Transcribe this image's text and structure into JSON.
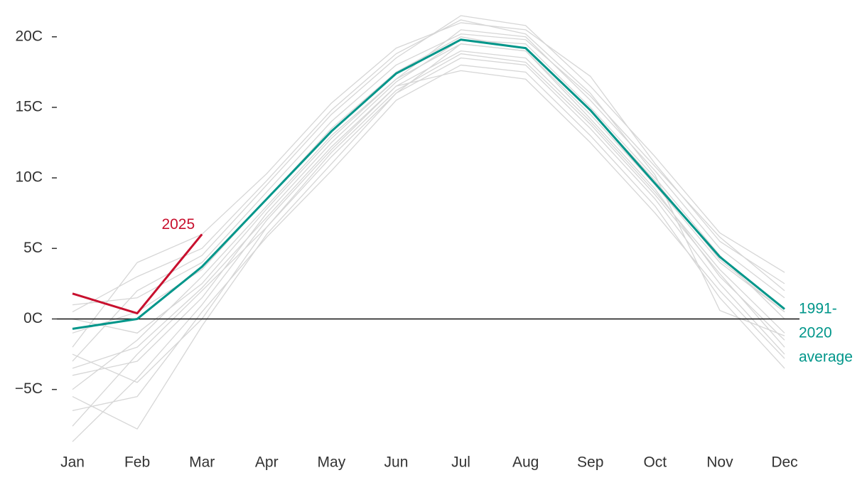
{
  "chart_data": {
    "type": "line",
    "categories": [
      "Jan",
      "Feb",
      "Mar",
      "Apr",
      "May",
      "Jun",
      "Jul",
      "Aug",
      "Sep",
      "Oct",
      "Nov",
      "Dec"
    ],
    "ylim": [
      -9,
      21.5
    ],
    "yticks": [
      {
        "value": 20,
        "label": "20C"
      },
      {
        "value": 15,
        "label": "15C"
      },
      {
        "value": 10,
        "label": "10C"
      },
      {
        "value": 5,
        "label": "5C"
      },
      {
        "value": 0,
        "label": "0C"
      },
      {
        "value": -5,
        "label": "−5C"
      }
    ],
    "zero_line": true,
    "background_series": {
      "color": "#d6d6d6",
      "values": [
        [
          -8.7,
          -4.2,
          1.0,
          7.0,
          12.0,
          16.5,
          19.0,
          18.5,
          14.0,
          9.0,
          3.5,
          -1.0
        ],
        [
          -7.6,
          -2.5,
          2.0,
          6.5,
          11.5,
          16.0,
          18.5,
          18.0,
          13.5,
          8.5,
          2.5,
          -2.5
        ],
        [
          -6.5,
          -5.5,
          0.5,
          5.8,
          10.5,
          15.5,
          18.0,
          17.5,
          13.0,
          8.0,
          1.5,
          -3.5
        ],
        [
          -5.5,
          -7.8,
          -0.5,
          6.0,
          11.0,
          16.0,
          19.5,
          19.0,
          14.5,
          9.5,
          4.0,
          0.5
        ],
        [
          -5.0,
          -1.5,
          3.0,
          8.0,
          13.0,
          17.0,
          20.5,
          20.0,
          15.5,
          10.5,
          5.0,
          1.5
        ],
        [
          -4.0,
          -3.0,
          1.5,
          7.5,
          12.5,
          16.8,
          19.8,
          19.5,
          15.0,
          10.0,
          4.5,
          0.0
        ],
        [
          -3.0,
          2.0,
          4.5,
          9.5,
          14.5,
          18.5,
          21.5,
          20.8,
          16.5,
          11.5,
          6.1,
          3.3
        ],
        [
          -2.0,
          4.0,
          6.0,
          10.3,
          15.3,
          19.2,
          21.0,
          20.5,
          17.2,
          11.0,
          5.5,
          2.5
        ],
        [
          -1.0,
          0.5,
          3.5,
          8.5,
          13.5,
          17.5,
          20.0,
          19.2,
          14.8,
          9.8,
          4.2,
          0.5
        ],
        [
          0.0,
          -1.0,
          2.5,
          7.8,
          12.8,
          17.0,
          19.5,
          19.0,
          14.2,
          9.2,
          3.0,
          -1.5
        ],
        [
          1.0,
          1.5,
          4.0,
          9.0,
          14.0,
          18.0,
          20.2,
          19.8,
          15.8,
          10.8,
          5.8,
          2.0
        ],
        [
          -2.5,
          -4.5,
          0.0,
          6.5,
          11.8,
          16.2,
          18.8,
          18.2,
          13.8,
          8.8,
          3.2,
          -2.0
        ],
        [
          0.5,
          3.0,
          5.0,
          9.8,
          14.8,
          18.8,
          21.2,
          20.2,
          16.0,
          10.2,
          0.6,
          -1.2
        ],
        [
          -3.5,
          -2.0,
          2.2,
          7.2,
          12.2,
          16.5,
          17.6,
          17.0,
          12.5,
          7.5,
          2.0,
          -2.8
        ]
      ]
    },
    "series": [
      {
        "name": "2025",
        "color": "#c8102e",
        "values": [
          1.8,
          0.4,
          6.0,
          null,
          null,
          null,
          null,
          null,
          null,
          null,
          null,
          null
        ]
      },
      {
        "name": "1991-2020 average",
        "color": "#00968a",
        "values": [
          -0.7,
          0.0,
          3.7,
          8.5,
          13.3,
          17.4,
          19.8,
          19.2,
          14.8,
          9.6,
          4.4,
          0.7
        ]
      }
    ]
  }
}
